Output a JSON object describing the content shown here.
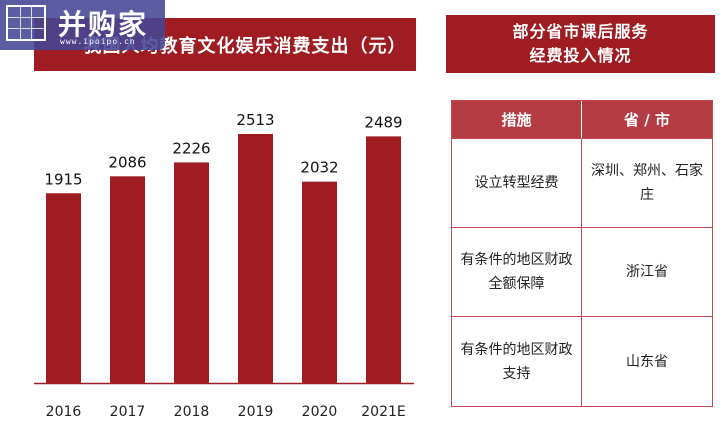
{
  "watermark": {
    "text": "并购家",
    "url": "www.ipoipo.cn"
  },
  "left_title": "我国人均教育文化娱乐消费支出（元）",
  "chart_data": {
    "type": "bar",
    "title": "我国人均教育文化娱乐消费支出（元）",
    "categories": [
      "2016",
      "2017",
      "2018",
      "2019",
      "2020",
      "2021E"
    ],
    "values": [
      1915,
      2086,
      2226,
      2513,
      2032,
      2489
    ],
    "ylim": [
      0,
      2513
    ],
    "color": "#9e1c22",
    "grid": false
  },
  "right_panel": {
    "title_line1": "部分省市课后服务",
    "title_line2": "经费投入情况",
    "table": {
      "headers": [
        "措施",
        "省 / 市"
      ],
      "rows": [
        {
          "measure": "设立转型经费",
          "region": "深圳、郑州、石家庄"
        },
        {
          "measure": "有条件的地区财政全额保障",
          "region": "浙江省"
        },
        {
          "measure": "有条件的地区财政支持",
          "region": "山东省"
        }
      ]
    }
  }
}
